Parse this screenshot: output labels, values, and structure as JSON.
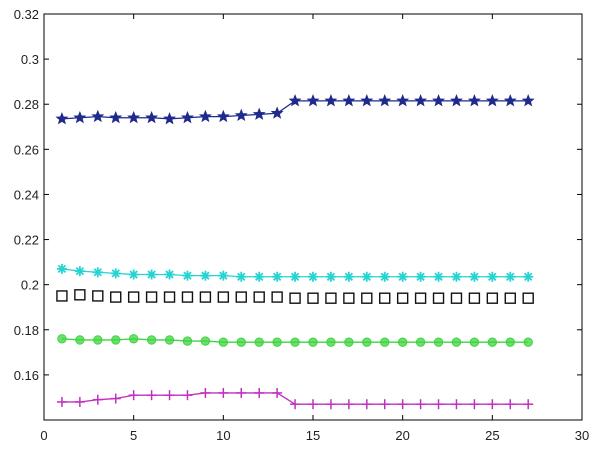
{
  "chart_data": {
    "type": "line",
    "xlim": [
      0,
      30
    ],
    "ylim": [
      0.14,
      0.32
    ],
    "x_ticks": [
      0,
      5,
      10,
      15,
      20,
      25,
      30
    ],
    "x_tick_labels": [
      "0",
      "5",
      "10",
      "15",
      "20",
      "25",
      "30"
    ],
    "y_ticks": [
      0.16,
      0.18,
      0.2,
      0.22,
      0.24,
      0.26,
      0.28,
      0.3,
      0.32
    ],
    "y_tick_labels": [
      "0.16",
      "0.18",
      "0.2",
      "0.22",
      "0.24",
      "0.26",
      "0.28",
      "0.3",
      "0.32"
    ],
    "grid": false,
    "x": [
      1,
      2,
      3,
      4,
      5,
      6,
      7,
      8,
      9,
      10,
      11,
      12,
      13,
      14,
      15,
      16,
      17,
      18,
      19,
      20,
      21,
      22,
      23,
      24,
      25,
      26,
      27
    ],
    "series": [
      {
        "color": "#1f2a8c",
        "marker": "star",
        "line": true,
        "values": [
          0.2735,
          0.274,
          0.2745,
          0.274,
          0.274,
          0.274,
          0.2735,
          0.274,
          0.2745,
          0.2745,
          0.275,
          0.2755,
          0.276,
          0.2815,
          0.2815,
          0.2815,
          0.2815,
          0.2815,
          0.2815,
          0.2815,
          0.2815,
          0.2815,
          0.2815,
          0.2815,
          0.2815,
          0.2815,
          0.2815
        ]
      },
      {
        "color": "#27d3d3",
        "marker": "asterisk",
        "line": true,
        "values": [
          0.207,
          0.206,
          0.2055,
          0.205,
          0.2045,
          0.2045,
          0.2045,
          0.204,
          0.204,
          0.204,
          0.2035,
          0.2035,
          0.2035,
          0.2035,
          0.2035,
          0.2035,
          0.2035,
          0.2035,
          0.2035,
          0.2035,
          0.2035,
          0.2035,
          0.2035,
          0.2035,
          0.2035,
          0.2035,
          0.2035
        ]
      },
      {
        "color": "#111111",
        "marker": "square",
        "line": false,
        "values": [
          0.195,
          0.1955,
          0.195,
          0.1945,
          0.1945,
          0.1945,
          0.1945,
          0.1945,
          0.1945,
          0.1945,
          0.1945,
          0.1945,
          0.1945,
          0.194,
          0.194,
          0.194,
          0.194,
          0.194,
          0.194,
          0.194,
          0.194,
          0.194,
          0.194,
          0.194,
          0.194,
          0.194,
          0.194
        ]
      },
      {
        "color": "#3ed43e",
        "marker": "circle",
        "line": true,
        "values": [
          0.176,
          0.1755,
          0.1755,
          0.1755,
          0.176,
          0.1755,
          0.1755,
          0.175,
          0.175,
          0.1745,
          0.1745,
          0.1745,
          0.1745,
          0.1745,
          0.1745,
          0.1745,
          0.1745,
          0.1745,
          0.1745,
          0.1745,
          0.1745,
          0.1745,
          0.1745,
          0.1745,
          0.1745,
          0.1745,
          0.1745
        ]
      },
      {
        "color": "#c030c0",
        "marker": "plus",
        "line": true,
        "values": [
          0.148,
          0.148,
          0.149,
          0.1495,
          0.151,
          0.151,
          0.151,
          0.151,
          0.152,
          0.152,
          0.152,
          0.152,
          0.152,
          0.147,
          0.147,
          0.147,
          0.147,
          0.147,
          0.147,
          0.147,
          0.147,
          0.147,
          0.147,
          0.147,
          0.147,
          0.147,
          0.147
        ]
      }
    ]
  }
}
